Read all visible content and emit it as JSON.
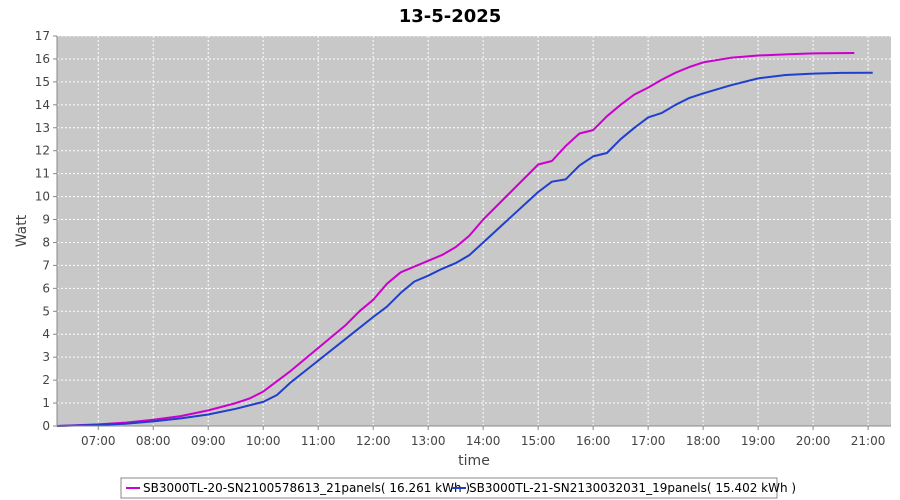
{
  "chart_data": {
    "type": "line",
    "title": "13-5-2025",
    "xlabel": "time",
    "ylabel": "Watt",
    "ylim": [
      0,
      17
    ],
    "xlim": [
      "06:15",
      "21:25"
    ],
    "x_ticks": [
      "07:00",
      "08:00",
      "09:00",
      "10:00",
      "11:00",
      "12:00",
      "13:00",
      "14:00",
      "15:00",
      "16:00",
      "17:00",
      "18:00",
      "19:00",
      "20:00",
      "21:00"
    ],
    "y_ticks": [
      0,
      1,
      2,
      3,
      4,
      5,
      6,
      7,
      8,
      9,
      10,
      11,
      12,
      13,
      14,
      15,
      16,
      17
    ],
    "grid": true,
    "legend_position": "bottom",
    "series": [
      {
        "name": "SB3000TL-20-SN2100578613_21panels( 16.261 kWh )",
        "color": "#cc00cc",
        "points": [
          [
            "06:15",
            0.0
          ],
          [
            "07:00",
            0.07
          ],
          [
            "07:30",
            0.15
          ],
          [
            "08:00",
            0.27
          ],
          [
            "08:30",
            0.43
          ],
          [
            "09:00",
            0.68
          ],
          [
            "09:30",
            1.0
          ],
          [
            "09:45",
            1.2
          ],
          [
            "10:00",
            1.5
          ],
          [
            "10:30",
            2.4
          ],
          [
            "11:00",
            3.4
          ],
          [
            "11:30",
            4.4
          ],
          [
            "11:45",
            5.0
          ],
          [
            "12:00",
            5.5
          ],
          [
            "12:15",
            6.2
          ],
          [
            "12:30",
            6.7
          ],
          [
            "12:45",
            6.95
          ],
          [
            "13:00",
            7.2
          ],
          [
            "13:15",
            7.45
          ],
          [
            "13:30",
            7.8
          ],
          [
            "13:45",
            8.3
          ],
          [
            "14:00",
            9.0
          ],
          [
            "14:30",
            10.2
          ],
          [
            "15:00",
            11.4
          ],
          [
            "15:15",
            11.55
          ],
          [
            "15:30",
            12.2
          ],
          [
            "15:45",
            12.75
          ],
          [
            "16:00",
            12.9
          ],
          [
            "16:15",
            13.5
          ],
          [
            "16:30",
            14.0
          ],
          [
            "16:45",
            14.45
          ],
          [
            "17:00",
            14.75
          ],
          [
            "17:15",
            15.1
          ],
          [
            "17:30",
            15.4
          ],
          [
            "17:45",
            15.65
          ],
          [
            "18:00",
            15.85
          ],
          [
            "18:30",
            16.05
          ],
          [
            "19:00",
            16.15
          ],
          [
            "19:30",
            16.2
          ],
          [
            "20:00",
            16.24
          ],
          [
            "20:45",
            16.26
          ]
        ]
      },
      {
        "name": "SB3000TL-21-SN2130032031_19panels( 15.402 kWh )",
        "color": "#1f3fcc",
        "points": [
          [
            "06:15",
            0.0
          ],
          [
            "07:00",
            0.05
          ],
          [
            "07:30",
            0.1
          ],
          [
            "08:00",
            0.2
          ],
          [
            "08:30",
            0.33
          ],
          [
            "09:00",
            0.5
          ],
          [
            "09:30",
            0.75
          ],
          [
            "10:00",
            1.05
          ],
          [
            "10:15",
            1.35
          ],
          [
            "10:30",
            1.9
          ],
          [
            "11:00",
            2.85
          ],
          [
            "11:30",
            3.8
          ],
          [
            "12:00",
            4.75
          ],
          [
            "12:15",
            5.2
          ],
          [
            "12:30",
            5.8
          ],
          [
            "12:45",
            6.3
          ],
          [
            "13:00",
            6.55
          ],
          [
            "13:15",
            6.85
          ],
          [
            "13:30",
            7.1
          ],
          [
            "13:45",
            7.45
          ],
          [
            "14:00",
            8.0
          ],
          [
            "14:30",
            9.1
          ],
          [
            "15:00",
            10.2
          ],
          [
            "15:15",
            10.65
          ],
          [
            "15:30",
            10.75
          ],
          [
            "15:45",
            11.35
          ],
          [
            "16:00",
            11.75
          ],
          [
            "16:15",
            11.9
          ],
          [
            "16:30",
            12.5
          ],
          [
            "16:45",
            13.0
          ],
          [
            "17:00",
            13.45
          ],
          [
            "17:15",
            13.65
          ],
          [
            "17:30",
            14.0
          ],
          [
            "17:45",
            14.3
          ],
          [
            "18:00",
            14.5
          ],
          [
            "18:30",
            14.85
          ],
          [
            "19:00",
            15.15
          ],
          [
            "19:30",
            15.3
          ],
          [
            "20:00",
            15.36
          ],
          [
            "20:30",
            15.39
          ],
          [
            "21:05",
            15.4
          ]
        ]
      }
    ]
  }
}
